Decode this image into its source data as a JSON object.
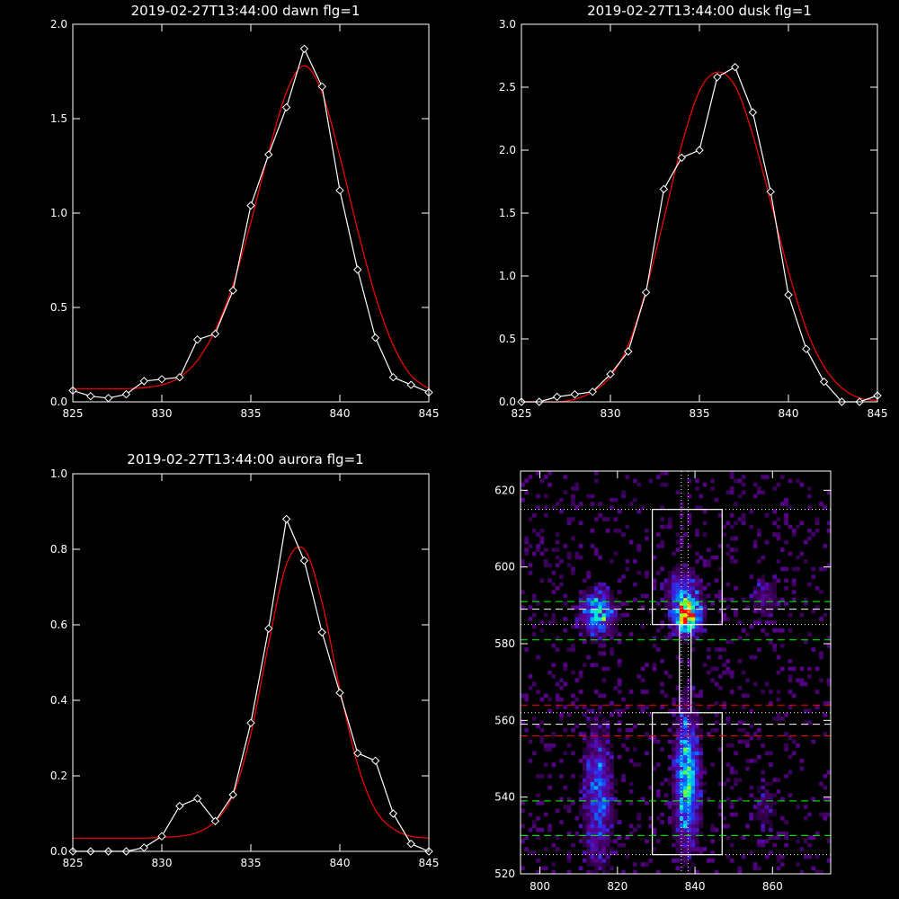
{
  "chart_data": [
    {
      "type": "line",
      "title": "2019-02-27T13:44:00 dawn flg=1",
      "xlim": [
        825,
        845
      ],
      "ylim": [
        0.0,
        2.0
      ],
      "xticks": [
        825,
        830,
        835,
        840,
        845
      ],
      "yticks": [
        0.0,
        0.5,
        1.0,
        1.5,
        2.0
      ],
      "xtick_labels": [
        "825",
        "830",
        "835",
        "840",
        "845"
      ],
      "ytick_labels": [
        "0.0",
        "0.5",
        "1.0",
        "1.5",
        "2.0"
      ],
      "colors": {
        "observed": "#ffffff",
        "fit": "#ff0000"
      },
      "series": [
        {
          "x": [
            825,
            826,
            827,
            828,
            829,
            830,
            831,
            832,
            833,
            834,
            835,
            836,
            837,
            838,
            839,
            840,
            841,
            842,
            843,
            844,
            845
          ],
          "values": [
            0.06,
            0.03,
            0.02,
            0.04,
            0.11,
            0.12,
            0.13,
            0.33,
            0.36,
            0.59,
            1.04,
            1.31,
            1.56,
            1.87,
            1.67,
            1.12,
            0.7,
            0.34,
            0.13,
            0.09,
            0.05
          ]
        },
        {
          "x": [
            825,
            826,
            827,
            828,
            829,
            830,
            831,
            832,
            833,
            834,
            835,
            836,
            837,
            838,
            839,
            840,
            841,
            842,
            843,
            844,
            845
          ],
          "values": [
            0.07,
            0.07,
            0.07,
            0.07,
            0.075,
            0.09,
            0.13,
            0.22,
            0.38,
            0.62,
            0.95,
            1.32,
            1.64,
            1.78,
            1.64,
            1.3,
            0.91,
            0.56,
            0.3,
            0.14,
            0.07
          ]
        }
      ]
    },
    {
      "type": "line",
      "title": "2019-02-27T13:44:00 dusk flg=1",
      "xlim": [
        825,
        845
      ],
      "ylim": [
        0.0,
        3.0
      ],
      "xticks": [
        825,
        830,
        835,
        840,
        845
      ],
      "yticks": [
        0.0,
        0.5,
        1.0,
        1.5,
        2.0,
        2.5,
        3.0
      ],
      "xtick_labels": [
        "825",
        "830",
        "835",
        "840",
        "845"
      ],
      "ytick_labels": [
        "0.0",
        "0.5",
        "1.0",
        "1.5",
        "2.0",
        "2.5",
        "3.0"
      ],
      "colors": {
        "observed": "#ffffff",
        "fit": "#ff0000"
      },
      "series": [
        {
          "x": [
            825,
            826,
            827,
            828,
            829,
            830,
            831,
            832,
            833,
            834,
            835,
            836,
            837,
            838,
            839,
            840,
            841,
            842,
            843,
            844,
            845
          ],
          "values": [
            0.0,
            -0.02,
            0.04,
            0.06,
            0.08,
            0.22,
            0.4,
            0.87,
            1.69,
            1.94,
            2.0,
            2.58,
            2.66,
            2.3,
            1.67,
            0.85,
            0.42,
            0.16,
            0.0,
            0.0,
            0.05
          ]
        },
        {
          "x": [
            825,
            826,
            827,
            828,
            829,
            830,
            831,
            832,
            833,
            834,
            835,
            836,
            837,
            838,
            839,
            840,
            841,
            842,
            843,
            844,
            845
          ],
          "values": [
            0.0,
            0.0,
            0.0,
            0.02,
            0.08,
            0.2,
            0.45,
            0.89,
            1.45,
            2.04,
            2.47,
            2.62,
            2.51,
            2.12,
            1.59,
            1.04,
            0.58,
            0.28,
            0.11,
            0.03,
            0.01
          ]
        }
      ]
    },
    {
      "type": "line",
      "title": "2019-02-27T13:44:00 aurora flg=1",
      "xlim": [
        825,
        845
      ],
      "ylim": [
        0.0,
        1.0
      ],
      "xticks": [
        825,
        830,
        835,
        840,
        845
      ],
      "yticks": [
        0.0,
        0.2,
        0.4,
        0.6,
        0.8,
        1.0
      ],
      "xtick_labels": [
        "825",
        "830",
        "835",
        "840",
        "845"
      ],
      "ytick_labels": [
        "0.0",
        "0.2",
        "0.4",
        "0.6",
        "0.8",
        "1.0"
      ],
      "colors": {
        "observed": "#ffffff",
        "fit": "#ff0000"
      },
      "series": [
        {
          "x": [
            825,
            826,
            827,
            828,
            829,
            830,
            831,
            832,
            833,
            834,
            835,
            836,
            837,
            838,
            839,
            840,
            841,
            842,
            843,
            844,
            845
          ],
          "values": [
            0.0,
            -0.01,
            -0.01,
            -0.01,
            0.01,
            0.04,
            0.12,
            0.14,
            0.08,
            0.15,
            0.34,
            0.59,
            0.88,
            0.77,
            0.58,
            0.42,
            0.26,
            0.24,
            0.1,
            0.02,
            -0.01
          ]
        },
        {
          "x": [
            825,
            826,
            827,
            828,
            829,
            830,
            831,
            832,
            833,
            834,
            835,
            836,
            837,
            838,
            839,
            840,
            841,
            842,
            843,
            844,
            845
          ],
          "values": [
            0.035,
            0.035,
            0.035,
            0.035,
            0.035,
            0.037,
            0.04,
            0.05,
            0.08,
            0.15,
            0.31,
            0.55,
            0.76,
            0.8,
            0.66,
            0.43,
            0.23,
            0.11,
            0.06,
            0.04,
            0.035
          ]
        }
      ]
    },
    {
      "type": "heatmap",
      "title": "",
      "xlim": [
        795,
        875
      ],
      "ylim": [
        520,
        625
      ],
      "xticks": [
        800,
        820,
        840,
        860
      ],
      "yticks": [
        520,
        540,
        560,
        580,
        600,
        620
      ],
      "xtick_labels": [
        "800",
        "820",
        "840",
        "860"
      ],
      "ytick_labels": [
        "520",
        "540",
        "560",
        "580",
        "600",
        "620"
      ],
      "blobs": [
        {
          "x": 815,
          "y": 588,
          "sx": 3.0,
          "sy": 4.0,
          "a": 0.55
        },
        {
          "x": 838,
          "y": 587,
          "sx": 2.2,
          "sy": 3.0,
          "a": 1.0
        },
        {
          "x": 837,
          "y": 594,
          "sx": 3.0,
          "sy": 4.0,
          "a": 0.35
        },
        {
          "x": 838,
          "y": 545,
          "sx": 2.2,
          "sy": 12.0,
          "a": 0.6
        },
        {
          "x": 815,
          "y": 540,
          "sx": 2.5,
          "sy": 12.0,
          "a": 0.4
        },
        {
          "x": 858,
          "y": 592,
          "sx": 2.5,
          "sy": 4.0,
          "a": 0.2
        },
        {
          "x": 858,
          "y": 538,
          "sx": 2.5,
          "sy": 5.0,
          "a": 0.15
        }
      ],
      "boxes": [
        {
          "x0": 829,
          "x1": 847,
          "y0": 585,
          "y1": 615
        },
        {
          "x0": 829,
          "x1": 847,
          "y0": 525,
          "y1": 562
        },
        {
          "x0": 836,
          "x1": 839,
          "y0": 562,
          "y1": 585
        }
      ],
      "hlines": [
        {
          "y": 615,
          "color": "#ffffff",
          "style": "dotted"
        },
        {
          "y": 591,
          "color": "#00ff00",
          "style": "dashed"
        },
        {
          "y": 589,
          "color": "#ffffff",
          "style": "dashed"
        },
        {
          "y": 585,
          "color": "#ffffff",
          "style": "dotted"
        },
        {
          "y": 581,
          "color": "#00ff00",
          "style": "dashed"
        },
        {
          "y": 564,
          "color": "#ff0000",
          "style": "dashed"
        },
        {
          "y": 562,
          "color": "#ffffff",
          "style": "dotted"
        },
        {
          "y": 559,
          "color": "#ffffff",
          "style": "dashed"
        },
        {
          "y": 556,
          "color": "#ff0000",
          "style": "dashed"
        },
        {
          "y": 539,
          "color": "#00ff00",
          "style": "dashed"
        },
        {
          "y": 530,
          "color": "#00ff00",
          "style": "dashed"
        },
        {
          "y": 525,
          "color": "#ffffff",
          "style": "dotted"
        }
      ],
      "vlines": [
        {
          "x": 836.5,
          "color": "#ffffff",
          "style": "dotted"
        },
        {
          "x": 838.2,
          "color": "#ffffff",
          "style": "dotted"
        }
      ],
      "colors": {
        "background": "#000000",
        "axes": "#ffffff"
      }
    }
  ]
}
